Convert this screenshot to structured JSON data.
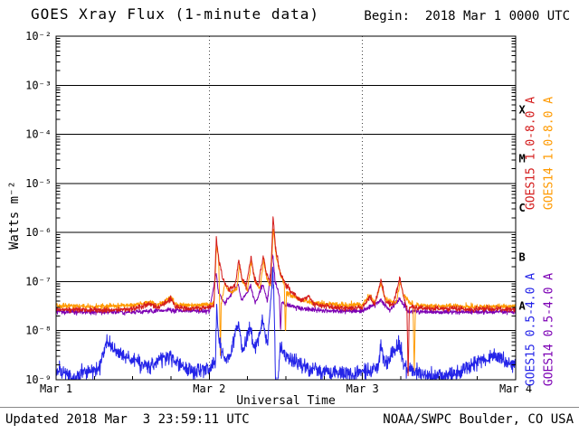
{
  "begin_label": "Begin:  2018 Mar 1 0000 UTC",
  "footer": {
    "updated": "Updated 2018 Mar  3 23:59:11 UTC",
    "credit": "NOAA/SWPC Boulder, CO USA"
  },
  "side_labels": [
    {
      "text": "GOES15 1.0-8.0 A",
      "color": "#d41c1c"
    },
    {
      "text": "GOES14 1.0-8.0 A",
      "color": "#ff9a00"
    },
    {
      "text": "GOES15 0.5-4.0 A",
      "color": "#2424e8"
    },
    {
      "text": "GOES14 0.5-4.0 A",
      "color": "#7c00b4"
    }
  ],
  "chart_data": {
    "type": "line",
    "title": "GOES Xray Flux (1-minute data)",
    "xlabel": "Universal Time",
    "ylabel": "Watts m⁻²",
    "x_unit": "days since 2018 Mar 1 0000 UTC",
    "xlim_days": [
      0,
      3
    ],
    "ylim": [
      1e-09,
      0.01
    ],
    "x_ticks": [
      {
        "day": 0,
        "label": "Mar 1"
      },
      {
        "day": 1,
        "label": "Mar 2"
      },
      {
        "day": 2,
        "label": "Mar 3"
      },
      {
        "day": 3,
        "label": "Mar 4"
      }
    ],
    "y_ticks": [
      {
        "exp": -2,
        "label": "10⁻²"
      },
      {
        "exp": -3,
        "label": "10⁻³"
      },
      {
        "exp": -4,
        "label": "10⁻⁴"
      },
      {
        "exp": -5,
        "label": "10⁻⁵"
      },
      {
        "exp": -6,
        "label": "10⁻⁶"
      },
      {
        "exp": -7,
        "label": "10⁻⁷"
      },
      {
        "exp": -8,
        "label": "10⁻⁸"
      },
      {
        "exp": -9,
        "label": "10⁻⁹"
      }
    ],
    "flare_classes": [
      {
        "label": "X",
        "mid_exp": -3.5
      },
      {
        "label": "M",
        "mid_exp": -4.5
      },
      {
        "label": "C",
        "mid_exp": -5.5
      },
      {
        "label": "B",
        "mid_exp": -6.5
      },
      {
        "label": "A",
        "mid_exp": -7.5
      }
    ],
    "grid": {
      "h_lines_exp": [
        -3,
        -4,
        -5,
        -6,
        -7,
        -8
      ],
      "v_dotted_days": [
        1,
        2
      ]
    },
    "series": [
      {
        "id": "goes14-short",
        "name": "GOES14 0.5-4.0 A",
        "color": "#7c00b4",
        "noise_dex": 0.04,
        "seed": 4,
        "points": [
          [
            0,
            2.4e-08
          ],
          [
            0.5,
            2.4e-08
          ],
          [
            0.75,
            2.6e-08
          ],
          [
            1.0,
            2.5e-08
          ],
          [
            1.045,
            1.5e-07
          ],
          [
            1.06,
            6e-08
          ],
          [
            1.1,
            3.5e-08
          ],
          [
            1.19,
            9e-08
          ],
          [
            1.21,
            4e-08
          ],
          [
            1.27,
            8e-08
          ],
          [
            1.3,
            3.6e-08
          ],
          [
            1.35,
            9e-08
          ],
          [
            1.38,
            4e-08
          ],
          [
            1.413,
            4e-07
          ],
          [
            1.43,
            1e-07
          ],
          [
            1.458,
            5e-08
          ],
          [
            1.465,
            9e-09
          ],
          [
            1.472,
            3.8e-08
          ],
          [
            1.5,
            3.4e-08
          ],
          [
            1.6,
            2.8e-08
          ],
          [
            1.8,
            2.5e-08
          ],
          [
            2.0,
            2.5e-08
          ],
          [
            2.12,
            4e-08
          ],
          [
            2.18,
            2.6e-08
          ],
          [
            2.24,
            4.4e-08
          ],
          [
            2.3,
            2.5e-08
          ],
          [
            2.5,
            2.4e-08
          ],
          [
            2.7,
            2.4e-08
          ],
          [
            3.0,
            2.4e-08
          ]
        ]
      },
      {
        "id": "goes14-long",
        "name": "GOES14 1.0-8.0 A",
        "color": "#ff9a00",
        "noise_dex": 0.045,
        "seed": 3,
        "points": [
          [
            0,
            3.2e-08
          ],
          [
            0.3,
            3.1e-08
          ],
          [
            0.5,
            3.3e-08
          ],
          [
            0.62,
            3.8e-08
          ],
          [
            0.66,
            3.3e-08
          ],
          [
            0.75,
            4.8e-08
          ],
          [
            0.78,
            3.4e-08
          ],
          [
            0.9,
            3.2e-08
          ],
          [
            1.0,
            3.4e-08
          ],
          [
            1.03,
            3.5e-08
          ],
          [
            1.048,
            6e-07
          ],
          [
            1.062,
            2.5e-07
          ],
          [
            1.068,
            3.2e-08
          ],
          [
            1.072,
            3e-09
          ],
          [
            1.078,
            3.3e-08
          ],
          [
            1.1,
            9e-08
          ],
          [
            1.14,
            6e-08
          ],
          [
            1.18,
            7e-08
          ],
          [
            1.196,
            2.2e-07
          ],
          [
            1.215,
            1e-07
          ],
          [
            1.25,
            7e-08
          ],
          [
            1.276,
            2.6e-07
          ],
          [
            1.295,
            1.1e-07
          ],
          [
            1.33,
            7e-08
          ],
          [
            1.356,
            2.8e-07
          ],
          [
            1.375,
            1.2e-07
          ],
          [
            1.4,
            8e-08
          ],
          [
            1.418,
            1.3e-06
          ],
          [
            1.435,
            3.5e-07
          ],
          [
            1.465,
            1.4e-07
          ],
          [
            1.49,
            9e-08
          ],
          [
            1.497,
            7e-09
          ],
          [
            1.504,
            6e-08
          ],
          [
            1.55,
            5e-08
          ],
          [
            1.6,
            4.2e-08
          ],
          [
            1.7,
            3.6e-08
          ],
          [
            1.8,
            3.4e-08
          ],
          [
            1.9,
            3.3e-08
          ],
          [
            2.0,
            3.4e-08
          ],
          [
            2.05,
            5.5e-08
          ],
          [
            2.08,
            3.6e-08
          ],
          [
            2.12,
            9e-08
          ],
          [
            2.15,
            4.5e-08
          ],
          [
            2.22,
            3.6e-08
          ],
          [
            2.245,
            1e-07
          ],
          [
            2.27,
            5e-08
          ],
          [
            2.33,
            3.3e-08
          ],
          [
            2.338,
            1.5e-09
          ],
          [
            2.346,
            3.3e-08
          ],
          [
            2.5,
            3.2e-08
          ],
          [
            2.7,
            3.1e-08
          ],
          [
            2.9,
            3.1e-08
          ],
          [
            3.0,
            3.1e-08
          ]
        ]
      },
      {
        "id": "goes15-short",
        "name": "GOES15 0.5-4.0 A",
        "color": "#2424e8",
        "noise_dex": 0.13,
        "seed": 2,
        "points": [
          [
            0,
            1.5e-09
          ],
          [
            0.08,
            1.3e-09
          ],
          [
            0.12,
            1e-09
          ],
          [
            0.18,
            1.4e-09
          ],
          [
            0.28,
            1.6e-09
          ],
          [
            0.33,
            6e-09
          ],
          [
            0.38,
            4.2e-09
          ],
          [
            0.45,
            3e-09
          ],
          [
            0.55,
            2e-09
          ],
          [
            0.62,
            1.8e-09
          ],
          [
            0.68,
            2.6e-09
          ],
          [
            0.75,
            3e-09
          ],
          [
            0.8,
            2e-09
          ],
          [
            0.9,
            1.5e-09
          ],
          [
            1.0,
            1.7e-09
          ],
          [
            1.04,
            2e-09
          ],
          [
            1.048,
            3e-08
          ],
          [
            1.06,
            8e-09
          ],
          [
            1.09,
            3e-09
          ],
          [
            1.13,
            2.6e-09
          ],
          [
            1.19,
            1.5e-08
          ],
          [
            1.215,
            4e-09
          ],
          [
            1.27,
            1.2e-08
          ],
          [
            1.295,
            4e-09
          ],
          [
            1.35,
            1.5e-08
          ],
          [
            1.38,
            5e-09
          ],
          [
            1.415,
            1.9e-07
          ],
          [
            1.425,
            2.5e-08
          ],
          [
            1.432,
            1e-09
          ],
          [
            1.45,
            1.1e-09
          ],
          [
            1.462,
            5e-09
          ],
          [
            1.5,
            3e-09
          ],
          [
            1.6,
            2e-09
          ],
          [
            1.7,
            1.6e-09
          ],
          [
            1.8,
            1.4e-09
          ],
          [
            1.9,
            1.3e-09
          ],
          [
            2.0,
            1.4e-09
          ],
          [
            2.1,
            1.6e-09
          ],
          [
            2.12,
            5e-09
          ],
          [
            2.15,
            2e-09
          ],
          [
            2.24,
            6e-09
          ],
          [
            2.27,
            2e-09
          ],
          [
            2.32,
            1.5e-09
          ],
          [
            2.45,
            1.2e-09
          ],
          [
            2.6,
            1.3e-09
          ],
          [
            2.7,
            1.9e-09
          ],
          [
            2.8,
            2.6e-09
          ],
          [
            2.88,
            3e-09
          ],
          [
            2.95,
            2.2e-09
          ],
          [
            3.0,
            2e-09
          ]
        ]
      },
      {
        "id": "goes15-long",
        "name": "GOES15 1.0-8.0 A",
        "color": "#d41c1c",
        "noise_dex": 0.045,
        "seed": 1,
        "points": [
          [
            0,
            2.7e-08
          ],
          [
            0.3,
            2.6e-08
          ],
          [
            0.5,
            2.8e-08
          ],
          [
            0.62,
            3.5e-08
          ],
          [
            0.66,
            2.9e-08
          ],
          [
            0.75,
            4.5e-08
          ],
          [
            0.78,
            3e-08
          ],
          [
            0.9,
            2.8e-08
          ],
          [
            1.0,
            3e-08
          ],
          [
            1.03,
            3.2e-08
          ],
          [
            1.046,
            8e-07
          ],
          [
            1.06,
            3e-07
          ],
          [
            1.09,
            1.1e-07
          ],
          [
            1.13,
            7e-08
          ],
          [
            1.17,
            9e-08
          ],
          [
            1.193,
            2.8e-07
          ],
          [
            1.213,
            1.2e-07
          ],
          [
            1.24,
            8e-08
          ],
          [
            1.273,
            3.2e-07
          ],
          [
            1.292,
            1.3e-07
          ],
          [
            1.32,
            8e-08
          ],
          [
            1.353,
            3.5e-07
          ],
          [
            1.372,
            1.5e-07
          ],
          [
            1.4,
            9e-08
          ],
          [
            1.416,
            2.2e-06
          ],
          [
            1.432,
            5e-07
          ],
          [
            1.46,
            1.6e-07
          ],
          [
            1.5,
            8.5e-08
          ],
          [
            1.55,
            5.5e-08
          ],
          [
            1.6,
            4e-08
          ],
          [
            1.65,
            5e-08
          ],
          [
            1.68,
            3.4e-08
          ],
          [
            1.7,
            3.3e-08
          ],
          [
            1.8,
            3e-08
          ],
          [
            1.9,
            2.9e-08
          ],
          [
            2.0,
            3e-08
          ],
          [
            2.05,
            5e-08
          ],
          [
            2.08,
            3.2e-08
          ],
          [
            2.12,
            1.1e-07
          ],
          [
            2.15,
            4e-08
          ],
          [
            2.2,
            3.2e-08
          ],
          [
            2.243,
            1.2e-07
          ],
          [
            2.27,
            5e-08
          ],
          [
            2.29,
            3e-08
          ],
          [
            2.298,
            1.1e-09
          ],
          [
            2.306,
            3e-08
          ],
          [
            2.4,
            2.9e-08
          ],
          [
            2.5,
            2.8e-08
          ],
          [
            2.6,
            2.8e-08
          ],
          [
            2.7,
            2.7e-08
          ],
          [
            2.8,
            2.8e-08
          ],
          [
            2.9,
            2.7e-08
          ],
          [
            3.0,
            2.7e-08
          ]
        ]
      }
    ]
  }
}
